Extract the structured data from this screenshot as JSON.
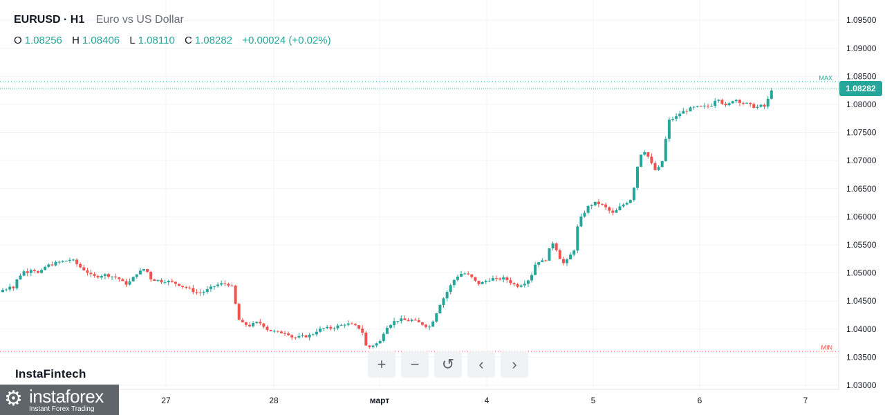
{
  "header": {
    "symbol": "EURUSD · H1",
    "description": "Euro vs US Dollar",
    "ohlc": {
      "o_label": "O",
      "o": "1.08256",
      "h_label": "H",
      "h": "1.08406",
      "l_label": "L",
      "l": "1.08110",
      "c_label": "C",
      "c": "1.08282",
      "change": "+0.00024 (+0.02%)"
    }
  },
  "branding": {
    "text": "InstaFintech",
    "logo_name": "instaforex",
    "logo_sub": "Instant Forex Trading"
  },
  "toolbar": {
    "zoom_in": "+",
    "zoom_out": "−",
    "reset": "↺",
    "scroll_left": "‹",
    "scroll_right": "›"
  },
  "price_badge": "1.08282",
  "colors": {
    "up": "#26a69a",
    "down": "#ef5350",
    "grid": "#f0f3fa",
    "axis_text": "#131722",
    "max_line": "#26a69a",
    "min_line": "#ef5350"
  },
  "chart_data": {
    "type": "candlestick",
    "title": "EURUSD · H1",
    "ylim": [
      1.0275,
      1.0975
    ],
    "y_ticks": [
      "1.03000",
      "1.03500",
      "1.04000",
      "1.04500",
      "1.05000",
      "1.05500",
      "1.06000",
      "1.06500",
      "1.07000",
      "1.07500",
      "1.08000",
      "1.08500",
      "1.09000",
      "1.09500"
    ],
    "x_ticks": [
      "27",
      "28",
      "март",
      "4",
      "5",
      "6",
      "7"
    ],
    "max_label": "MAX",
    "min_label": "MIN",
    "max_value": 1.08406,
    "min_value": 1.036,
    "last_price": 1.08282,
    "grid": true,
    "close_path": [
      [
        0,
        1.047
      ],
      [
        6,
        1.0472
      ],
      [
        10,
        1.0478
      ],
      [
        14,
        1.047
      ],
      [
        18,
        1.048
      ],
      [
        22,
        1.0493
      ],
      [
        26,
        1.0497
      ],
      [
        30,
        1.0503
      ],
      [
        34,
        1.05
      ],
      [
        38,
        1.0505
      ],
      [
        42,
        1.0508
      ],
      [
        48,
        1.0503
      ],
      [
        52,
        1.0498
      ],
      [
        58,
        1.0505
      ],
      [
        62,
        1.0512
      ],
      [
        70,
        1.0515
      ],
      [
        78,
        1.0518
      ],
      [
        84,
        1.052
      ],
      [
        92,
        1.0522
      ],
      [
        98,
        1.0524
      ],
      [
        104,
        1.052
      ],
      [
        110,
        1.0512
      ],
      [
        116,
        1.0507
      ],
      [
        122,
        1.0502
      ],
      [
        128,
        1.0495
      ],
      [
        134,
        1.0493
      ],
      [
        140,
        1.0495
      ],
      [
        146,
        1.0497
      ],
      [
        152,
        1.0496
      ],
      [
        158,
        1.0494
      ],
      [
        164,
        1.0492
      ],
      [
        170,
        1.0488
      ],
      [
        176,
        1.048
      ],
      [
        182,
        1.0482
      ],
      [
        188,
        1.049
      ],
      [
        194,
        1.05
      ],
      [
        200,
        1.0503
      ],
      [
        206,
        1.0509
      ],
      [
        210,
        1.05
      ],
      [
        214,
        1.049
      ],
      [
        218,
        1.0488
      ],
      [
        224,
        1.0487
      ],
      [
        230,
        1.0485
      ],
      [
        236,
        1.0486
      ],
      [
        242,
        1.0484
      ],
      [
        248,
        1.0482
      ],
      [
        254,
        1.048
      ],
      [
        260,
        1.0476
      ],
      [
        266,
        1.0474
      ],
      [
        272,
        1.047
      ],
      [
        278,
        1.0466
      ],
      [
        284,
        1.0464
      ],
      [
        290,
        1.0466
      ],
      [
        296,
        1.047
      ],
      [
        302,
        1.0474
      ],
      [
        308,
        1.0478
      ],
      [
        314,
        1.048
      ],
      [
        320,
        1.0481
      ],
      [
        326,
        1.048
      ],
      [
        330,
        1.0478
      ],
      [
        334,
        1.047
      ],
      [
        338,
        1.043
      ],
      [
        342,
        1.0415
      ],
      [
        346,
        1.041
      ],
      [
        352,
        1.0408
      ],
      [
        358,
        1.0406
      ],
      [
        364,
        1.041
      ],
      [
        370,
        1.0412
      ],
      [
        376,
        1.0408
      ],
      [
        382,
        1.04
      ],
      [
        388,
        1.0397
      ],
      [
        394,
        1.0395
      ],
      [
        400,
        1.0393
      ],
      [
        406,
        1.0395
      ],
      [
        412,
        1.0393
      ],
      [
        418,
        1.0386
      ],
      [
        424,
        1.0385
      ],
      [
        430,
        1.0386
      ],
      [
        436,
        1.0387
      ],
      [
        442,
        1.0388
      ],
      [
        448,
        1.0391
      ],
      [
        454,
        1.0397
      ],
      [
        460,
        1.04
      ],
      [
        466,
        1.0402
      ],
      [
        472,
        1.0401
      ],
      [
        478,
        1.0403
      ],
      [
        484,
        1.0405
      ],
      [
        490,
        1.0407
      ],
      [
        496,
        1.041
      ],
      [
        502,
        1.0408
      ],
      [
        508,
        1.0406
      ],
      [
        514,
        1.0403
      ],
      [
        518,
        1.04
      ],
      [
        522,
        1.039
      ],
      [
        526,
        1.0366
      ],
      [
        530,
        1.0368
      ],
      [
        536,
        1.0372
      ],
      [
        542,
        1.0375
      ],
      [
        548,
        1.038
      ],
      [
        552,
        1.04
      ],
      [
        556,
        1.0405
      ],
      [
        562,
        1.041
      ],
      [
        568,
        1.0415
      ],
      [
        574,
        1.0417
      ],
      [
        580,
        1.0416
      ],
      [
        586,
        1.0415
      ],
      [
        592,
        1.0416
      ],
      [
        598,
        1.0413
      ],
      [
        604,
        1.041
      ],
      [
        610,
        1.0408
      ],
      [
        616,
        1.0402
      ],
      [
        620,
        1.041
      ],
      [
        626,
        1.0425
      ],
      [
        630,
        1.044
      ],
      [
        636,
        1.0452
      ],
      [
        642,
        1.0465
      ],
      [
        648,
        1.0478
      ],
      [
        654,
        1.049
      ],
      [
        660,
        1.0497
      ],
      [
        666,
        1.05
      ],
      [
        672,
        1.0497
      ],
      [
        678,
        1.0492
      ],
      [
        684,
        1.0484
      ],
      [
        690,
        1.048
      ],
      [
        696,
        1.0484
      ],
      [
        702,
        1.0488
      ],
      [
        708,
        1.049
      ],
      [
        714,
        1.0488
      ],
      [
        720,
        1.049
      ],
      [
        726,
        1.049
      ],
      [
        732,
        1.0486
      ],
      [
        738,
        1.048
      ],
      [
        744,
        1.0477
      ],
      [
        750,
        1.048
      ],
      [
        756,
        1.0484
      ],
      [
        762,
        1.049
      ],
      [
        766,
        1.05
      ],
      [
        770,
        1.0515
      ],
      [
        776,
        1.0522
      ],
      [
        782,
        1.052
      ],
      [
        786,
        1.0525
      ],
      [
        790,
        1.054
      ],
      [
        796,
        1.0555
      ],
      [
        800,
        1.0545
      ],
      [
        804,
        1.053
      ],
      [
        808,
        1.0523
      ],
      [
        812,
        1.0515
      ],
      [
        816,
        1.0522
      ],
      [
        820,
        1.053
      ],
      [
        826,
        1.054
      ],
      [
        830,
        1.0575
      ],
      [
        834,
        1.0595
      ],
      [
        838,
        1.06
      ],
      [
        842,
        1.061
      ],
      [
        846,
        1.0617
      ],
      [
        852,
        1.0622
      ],
      [
        858,
        1.0625
      ],
      [
        864,
        1.0623
      ],
      [
        870,
        1.0618
      ],
      [
        876,
        1.0612
      ],
      [
        880,
        1.0607
      ],
      [
        884,
        1.0605
      ],
      [
        890,
        1.0615
      ],
      [
        896,
        1.062
      ],
      [
        900,
        1.0625
      ],
      [
        906,
        1.0628
      ],
      [
        910,
        1.0635
      ],
      [
        914,
        1.066
      ],
      [
        918,
        1.069
      ],
      [
        922,
        1.071
      ],
      [
        926,
        1.0718
      ],
      [
        930,
        1.0716
      ],
      [
        934,
        1.0705
      ],
      [
        938,
        1.0695
      ],
      [
        942,
        1.0685
      ],
      [
        946,
        1.068
      ],
      [
        950,
        1.069
      ],
      [
        954,
        1.07
      ],
      [
        958,
        1.073
      ],
      [
        962,
        1.077
      ],
      [
        968,
        1.0775
      ],
      [
        972,
        1.0775
      ],
      [
        976,
        1.078
      ],
      [
        980,
        1.0785
      ],
      [
        986,
        1.0788
      ],
      [
        990,
        1.079
      ],
      [
        996,
        1.0793
      ],
      [
        1002,
        1.0795
      ],
      [
        1008,
        1.0795
      ],
      [
        1014,
        1.0796
      ],
      [
        1020,
        1.0797
      ],
      [
        1026,
        1.08
      ],
      [
        1030,
        1.0808
      ],
      [
        1034,
        1.0812
      ],
      [
        1038,
        1.0808
      ],
      [
        1042,
        1.08
      ],
      [
        1046,
        1.0796
      ],
      [
        1050,
        1.08
      ],
      [
        1054,
        1.0806
      ],
      [
        1058,
        1.081
      ],
      [
        1062,
        1.0808
      ],
      [
        1066,
        1.0805
      ],
      [
        1070,
        1.0803
      ],
      [
        1074,
        1.0802
      ],
      [
        1078,
        1.08
      ],
      [
        1082,
        1.0798
      ],
      [
        1086,
        1.0796
      ],
      [
        1090,
        1.0795
      ],
      [
        1094,
        1.0796
      ],
      [
        1098,
        1.0798
      ],
      [
        1102,
        1.0796
      ],
      [
        1106,
        1.0805
      ],
      [
        1110,
        1.0826
      ],
      [
        1114,
        1.0828
      ]
    ]
  }
}
